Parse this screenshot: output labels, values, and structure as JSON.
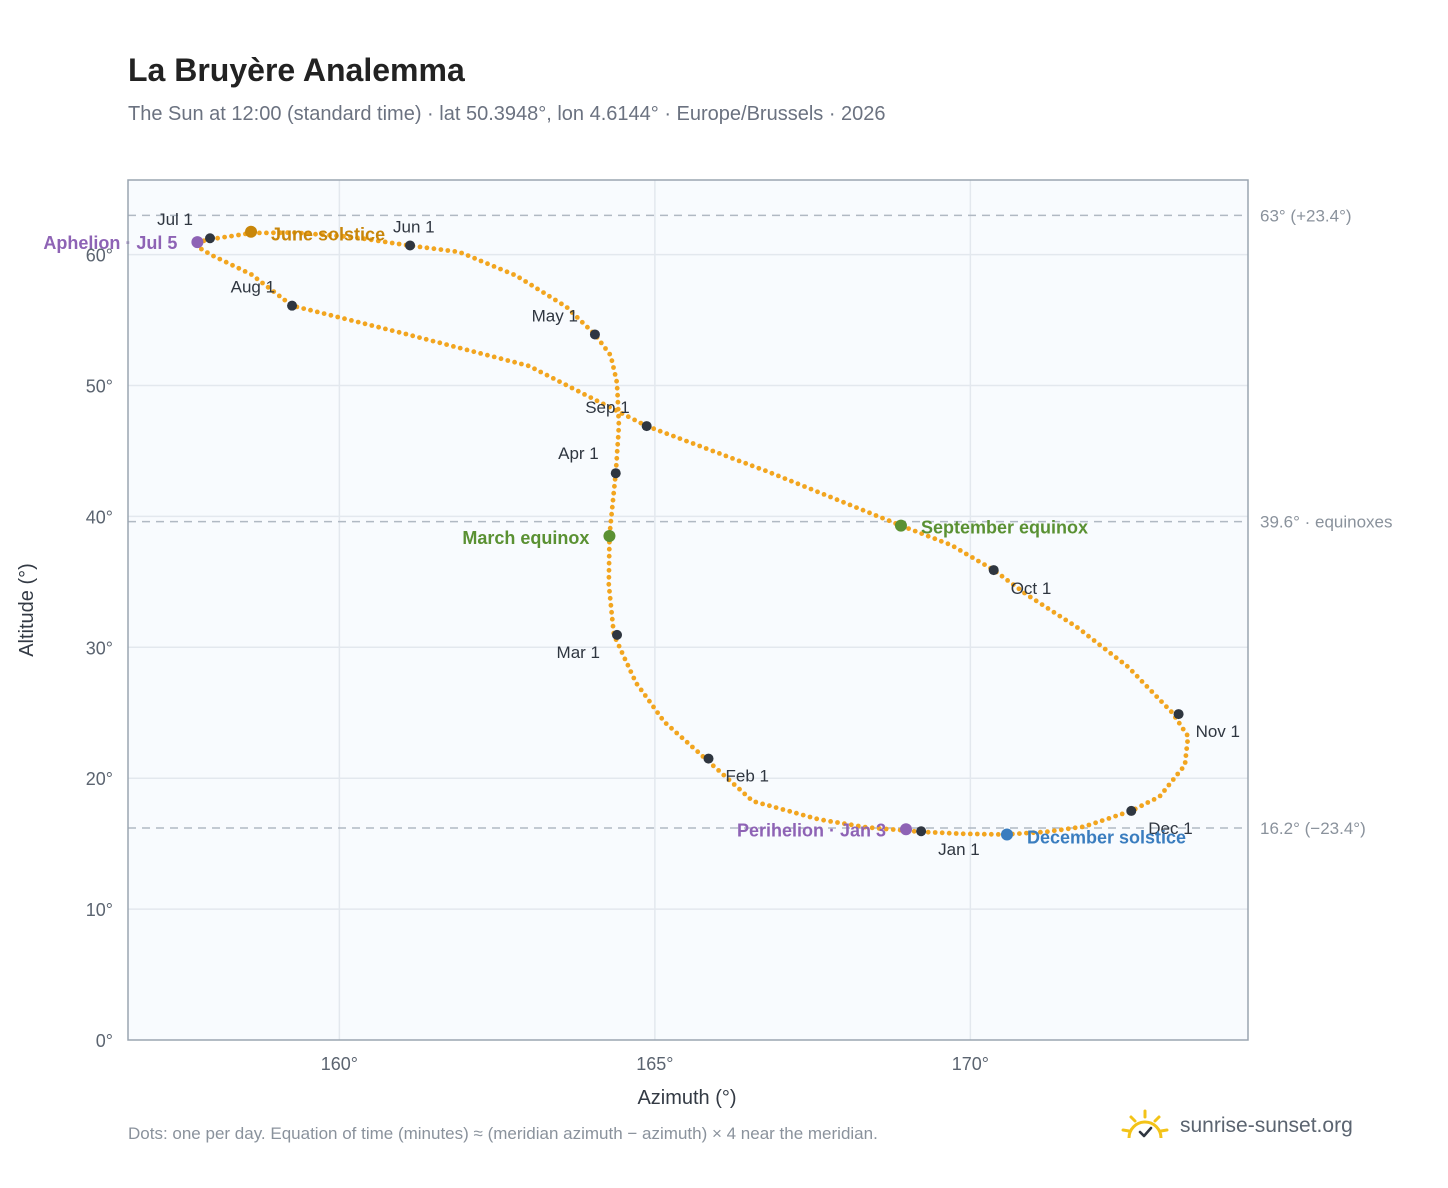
{
  "title": "La Bruyère Analemma",
  "subtitle": "The Sun at 12:00 (standard time) · lat 50.3948°, lon 4.6144° · Europe/Brussels · 2026",
  "footnote": "Dots: one per day. Equation of time (minutes) ≈ (meridian azimuth − azimuth) × 4 near the meridian.",
  "brand": {
    "text": "sunrise-sunset.org",
    "icon": "sun-check-icon"
  },
  "colors": {
    "curve": "#f2a51f",
    "month_marker": "#2f3640",
    "june_solstice": "#c8860a",
    "december_solstice": "#3a7dbf",
    "equinox": "#5a9133",
    "apsis": "#8e63b5",
    "plot_bg": "#f8fbfe",
    "grid": "#e3e8ee",
    "frame": "#9aa5b1",
    "reference_line": "#b0b9c3"
  },
  "chart_data": {
    "type": "scatter",
    "xlabel": "Azimuth (°)",
    "ylabel": "Altitude (°)",
    "xlim": [
      156.65,
      174.4
    ],
    "ylim": [
      0,
      65.7
    ],
    "x_ticks": [
      160,
      165,
      170
    ],
    "x_tick_labels": [
      "160°",
      "165°",
      "170°"
    ],
    "y_ticks": [
      0,
      10,
      20,
      30,
      40,
      50,
      60
    ],
    "y_tick_labels": [
      "0°",
      "10°",
      "20°",
      "30°",
      "40°",
      "50°",
      "60°"
    ],
    "grid": true,
    "series": [
      {
        "type": "line-dotted",
        "description_hidden": true,
        "points": [
          [
            169.22,
            15.9
          ],
          [
            168.35,
            16.25
          ],
          [
            167.6,
            16.85
          ],
          [
            166.55,
            18.25
          ],
          [
            165.8,
            21.5
          ],
          [
            165.15,
            24.3
          ],
          [
            164.7,
            27.3
          ],
          [
            164.35,
            30.95
          ],
          [
            164.27,
            34.8
          ],
          [
            164.28,
            38.5
          ],
          [
            164.38,
            43.3
          ],
          [
            164.43,
            46.9
          ],
          [
            164.4,
            50.2
          ],
          [
            164.3,
            52.3
          ],
          [
            164.05,
            53.9
          ],
          [
            163.6,
            56.0
          ],
          [
            162.8,
            58.4
          ],
          [
            161.9,
            60.2
          ],
          [
            161.1,
            60.7
          ],
          [
            160.2,
            61.35
          ],
          [
            159.3,
            61.68
          ],
          [
            158.6,
            61.65
          ],
          [
            158.0,
            61.2
          ],
          [
            157.8,
            61.0
          ],
          [
            157.75,
            60.6
          ],
          [
            158.0,
            59.9
          ],
          [
            158.6,
            58.5
          ],
          [
            159.25,
            56.1
          ],
          [
            161.0,
            54.0
          ],
          [
            163.0,
            51.5
          ],
          [
            164.87,
            46.9
          ],
          [
            166.8,
            43.4
          ],
          [
            168.9,
            39.3
          ],
          [
            169.7,
            37.8
          ],
          [
            170.37,
            35.9
          ],
          [
            170.9,
            34.0
          ],
          [
            171.7,
            31.5
          ],
          [
            172.5,
            28.5
          ],
          [
            173.2,
            25.0
          ],
          [
            173.45,
            23.2
          ],
          [
            173.4,
            21.0
          ],
          [
            173.0,
            18.6
          ],
          [
            172.55,
            17.5
          ],
          [
            171.8,
            16.3
          ],
          [
            171.2,
            15.9
          ],
          [
            170.55,
            15.7
          ],
          [
            169.9,
            15.75
          ],
          [
            169.22,
            15.9
          ]
        ]
      }
    ],
    "month_markers": [
      {
        "label": "Jan 1",
        "az": 169.22,
        "alt": 15.95
      },
      {
        "label": "Feb 1",
        "az": 165.85,
        "alt": 21.5
      },
      {
        "label": "Mar 1",
        "az": 164.4,
        "alt": 30.95
      },
      {
        "label": "Apr 1",
        "az": 164.38,
        "alt": 43.3
      },
      {
        "label": "May 1",
        "az": 164.05,
        "alt": 53.9
      },
      {
        "label": "Jun 1",
        "az": 161.12,
        "alt": 60.7
      },
      {
        "label": "Jul 1",
        "az": 157.95,
        "alt": 61.25
      },
      {
        "label": "Aug 1",
        "az": 159.25,
        "alt": 56.1
      },
      {
        "label": "Sep 1",
        "az": 164.87,
        "alt": 46.9
      },
      {
        "label": "Oct 1",
        "az": 170.37,
        "alt": 35.9
      },
      {
        "label": "Nov 1",
        "az": 173.3,
        "alt": 24.9
      },
      {
        "label": "Dec 1",
        "az": 172.55,
        "alt": 17.5
      }
    ],
    "events": [
      {
        "label": "June solstice",
        "az": 158.6,
        "alt": 61.75,
        "color": "#c8860a"
      },
      {
        "label": "December solstice",
        "az": 170.58,
        "alt": 15.7,
        "color": "#3a7dbf"
      },
      {
        "label": "March equinox",
        "az": 164.28,
        "alt": 38.5,
        "color": "#5a9133"
      },
      {
        "label": "September equinox",
        "az": 168.9,
        "alt": 39.3,
        "color": "#5a9133"
      },
      {
        "label": "Aphelion · Jul 5",
        "az": 157.75,
        "alt": 60.95,
        "color": "#8e63b5"
      },
      {
        "label": "Perihelion · Jan 3",
        "az": 168.98,
        "alt": 16.1,
        "color": "#8e63b5"
      }
    ],
    "reference_lines": [
      {
        "alt": 63.0,
        "label": "63° (+23.4°)"
      },
      {
        "alt": 39.6,
        "label": "39.6° · equinoxes"
      },
      {
        "alt": 16.2,
        "label": "16.2° (−23.4°)"
      }
    ]
  }
}
